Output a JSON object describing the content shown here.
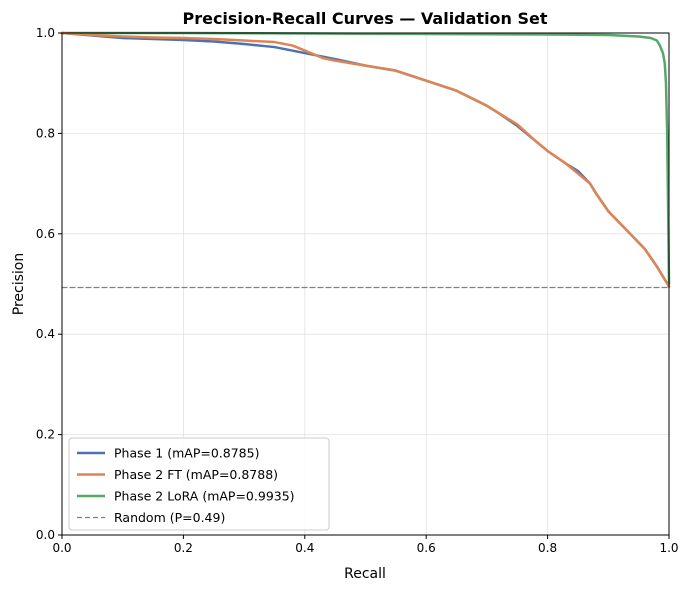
{
  "chart_data": {
    "type": "line",
    "title": "Precision-Recall Curves — Validation Set",
    "xlabel": "Recall",
    "ylabel": "Precision",
    "xlim": [
      0,
      1
    ],
    "ylim": [
      0,
      1
    ],
    "xticks": [
      "0.0",
      "0.2",
      "0.4",
      "0.6",
      "0.8",
      "1.0"
    ],
    "yticks": [
      "0.0",
      "0.2",
      "0.4",
      "0.6",
      "0.8",
      "1.0"
    ],
    "grid": true,
    "legend_position": "lower-left",
    "series": [
      {
        "name": "Phase 1  (mAP=0.8785)",
        "color": "#4c72b0",
        "style": "solid",
        "x": [
          0.0,
          0.05,
          0.1,
          0.15,
          0.2,
          0.25,
          0.3,
          0.35,
          0.4,
          0.45,
          0.5,
          0.55,
          0.6,
          0.65,
          0.7,
          0.72,
          0.75,
          0.78,
          0.8,
          0.83,
          0.85,
          0.87,
          0.88,
          0.9,
          0.92,
          0.94,
          0.96,
          0.98,
          0.99,
          1.0
        ],
        "y": [
          1.0,
          0.995,
          0.99,
          0.988,
          0.986,
          0.983,
          0.978,
          0.972,
          0.96,
          0.948,
          0.935,
          0.925,
          0.905,
          0.885,
          0.855,
          0.84,
          0.815,
          0.785,
          0.765,
          0.74,
          0.725,
          0.7,
          0.68,
          0.645,
          0.62,
          0.595,
          0.57,
          0.535,
          0.515,
          0.495
        ]
      },
      {
        "name": "Phase 2 FT  (mAP=0.8788)",
        "color": "#dd8452",
        "style": "solid",
        "x": [
          0.0,
          0.05,
          0.1,
          0.15,
          0.2,
          0.25,
          0.3,
          0.35,
          0.38,
          0.4,
          0.43,
          0.45,
          0.5,
          0.55,
          0.6,
          0.65,
          0.7,
          0.72,
          0.75,
          0.78,
          0.8,
          0.83,
          0.85,
          0.87,
          0.88,
          0.9,
          0.92,
          0.94,
          0.96,
          0.98,
          0.99,
          1.0
        ],
        "y": [
          1.0,
          0.996,
          0.993,
          0.991,
          0.99,
          0.988,
          0.985,
          0.982,
          0.975,
          0.965,
          0.95,
          0.945,
          0.935,
          0.925,
          0.905,
          0.885,
          0.855,
          0.84,
          0.818,
          0.785,
          0.765,
          0.74,
          0.72,
          0.7,
          0.68,
          0.645,
          0.62,
          0.595,
          0.57,
          0.535,
          0.515,
          0.495
        ]
      },
      {
        "name": "Phase 2 LoRA  (mAP=0.9935)",
        "color": "#55a868",
        "style": "solid",
        "x": [
          0.0,
          0.2,
          0.4,
          0.6,
          0.8,
          0.9,
          0.95,
          0.97,
          0.98,
          0.985,
          0.99,
          0.993,
          0.995,
          0.997,
          0.998,
          0.999,
          1.0
        ],
        "y": [
          1.0,
          1.0,
          0.999,
          0.998,
          0.997,
          0.996,
          0.993,
          0.99,
          0.985,
          0.975,
          0.96,
          0.94,
          0.9,
          0.8,
          0.7,
          0.6,
          0.5
        ]
      },
      {
        "name": "Random (P=0.49)",
        "color": "#808080",
        "style": "dashed",
        "x": [
          0.0,
          1.0
        ],
        "y": [
          0.493,
          0.493
        ]
      }
    ]
  }
}
